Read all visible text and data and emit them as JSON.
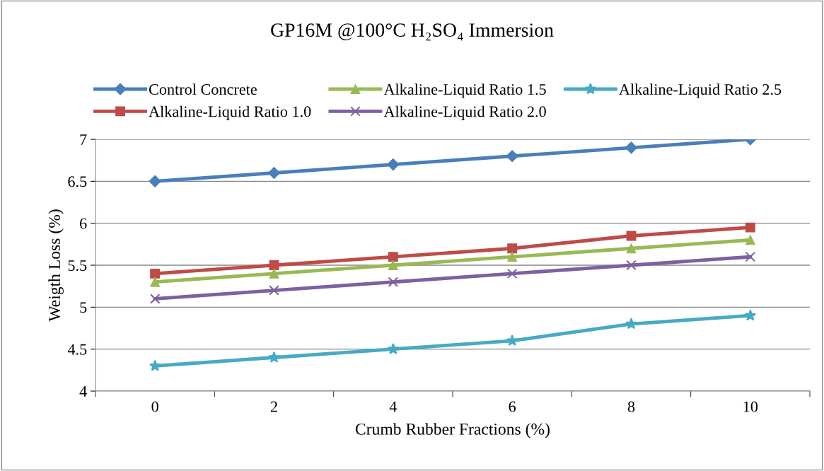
{
  "chart_data": {
    "type": "line",
    "title": "GP16M @100°C H₂SO₄ Immersion",
    "xlabel": "Crumb Rubber Fractions (%)",
    "ylabel": "Weigth Loss (%)",
    "categories": [
      "0",
      "2",
      "4",
      "6",
      "8",
      "10"
    ],
    "series": [
      {
        "name": "Control Concrete",
        "color": "#4a7ebb",
        "marker": "diamond",
        "values": [
          6.5,
          6.6,
          6.7,
          6.8,
          6.9,
          7.0
        ]
      },
      {
        "name": "Alkaline-Liquid Ratio 1.0",
        "color": "#be4b48",
        "marker": "square",
        "values": [
          5.4,
          5.5,
          5.6,
          5.7,
          5.85,
          5.95
        ]
      },
      {
        "name": "Alkaline-Liquid Ratio 1.5",
        "color": "#98b954",
        "marker": "triangle",
        "values": [
          5.3,
          5.4,
          5.5,
          5.6,
          5.7,
          5.8
        ]
      },
      {
        "name": "Alkaline-Liquid Ratio 2.0",
        "color": "#7d60a0",
        "marker": "cross",
        "values": [
          5.1,
          5.2,
          5.3,
          5.4,
          5.5,
          5.6
        ]
      },
      {
        "name": "Alkaline-Liquid Ratio 2.5",
        "color": "#46aac5",
        "marker": "star",
        "values": [
          4.3,
          4.4,
          4.5,
          4.6,
          4.8,
          4.9
        ]
      }
    ],
    "ylim": [
      4,
      7
    ],
    "yticks": [
      4,
      4.5,
      5,
      5.5,
      6,
      6.5,
      7
    ],
    "grid": "y",
    "legend": "top",
    "line_style": "solid"
  }
}
